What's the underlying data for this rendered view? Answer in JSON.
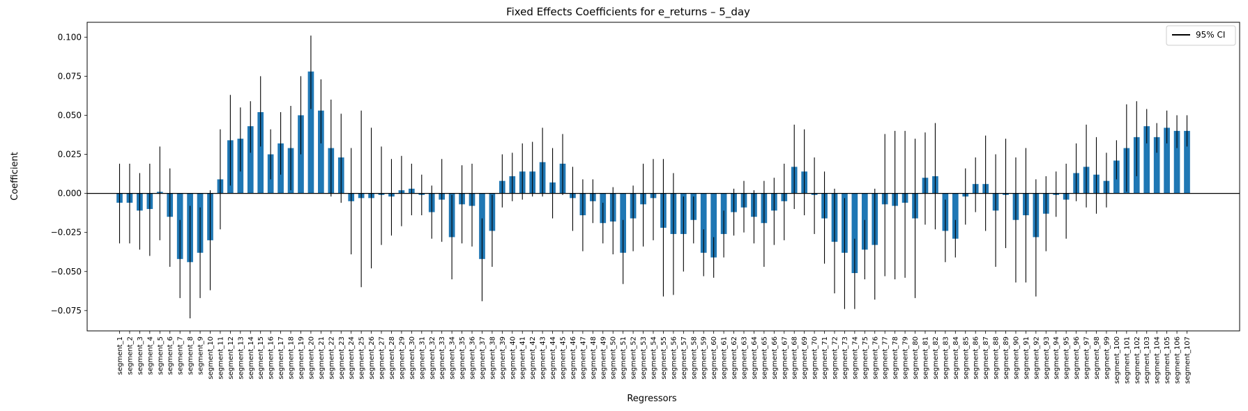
{
  "chart_data": {
    "type": "bar",
    "title": "Fixed Effects Coefficients for e_returns – 5_day",
    "xlabel": "Regressors",
    "ylabel": "Coefficient",
    "ylim": [
      -0.088,
      0.1095
    ],
    "yticks": [
      -0.075,
      -0.05,
      -0.025,
      0.0,
      0.025,
      0.05,
      0.075,
      0.1
    ],
    "ytick_labels": [
      "−0.075",
      "−0.050",
      "−0.025",
      "0.000",
      "0.025",
      "0.050",
      "0.075",
      "0.100"
    ],
    "reference_line": 0,
    "grid": false,
    "legend": {
      "position": "top-right",
      "entries": [
        "95% CI"
      ]
    },
    "colors": {
      "bar": "#1f77b4",
      "error": "#000000",
      "zero_line": "#000000"
    },
    "categories": [
      "segment_1",
      "segment_2",
      "segment_3",
      "segment_4",
      "segment_5",
      "segment_6",
      "segment_7",
      "segment_8",
      "segment_9",
      "segment_10",
      "segment_11",
      "segment_12",
      "segment_13",
      "segment_14",
      "segment_15",
      "segment_16",
      "segment_17",
      "segment_18",
      "segment_19",
      "segment_20",
      "segment_21",
      "segment_22",
      "segment_23",
      "segment_24",
      "segment_25",
      "segment_26",
      "segment_27",
      "segment_28",
      "segment_29",
      "segment_30",
      "segment_31",
      "segment_32",
      "segment_33",
      "segment_34",
      "segment_35",
      "segment_36",
      "segment_37",
      "segment_38",
      "segment_39",
      "segment_40",
      "segment_41",
      "segment_42",
      "segment_43",
      "segment_44",
      "segment_45",
      "segment_46",
      "segment_47",
      "segment_48",
      "segment_49",
      "segment_50",
      "segment_51",
      "segment_52",
      "segment_53",
      "segment_54",
      "segment_55",
      "segment_56",
      "segment_57",
      "segment_58",
      "segment_59",
      "segment_60",
      "segment_61",
      "segment_62",
      "segment_63",
      "segment_64",
      "segment_65",
      "segment_66",
      "segment_67",
      "segment_68",
      "segment_69",
      "segment_70",
      "segment_71",
      "segment_72",
      "segment_73",
      "segment_74",
      "segment_75",
      "segment_76",
      "segment_77",
      "segment_78",
      "segment_79",
      "segment_80",
      "segment_81",
      "segment_82",
      "segment_83",
      "segment_84",
      "segment_85",
      "segment_86",
      "segment_87",
      "segment_88",
      "segment_89",
      "segment_90",
      "segment_91",
      "segment_92",
      "segment_93",
      "segment_94",
      "segment_95",
      "segment_96",
      "segment_97",
      "segment_98",
      "segment_99",
      "segment_100",
      "segment_101",
      "segment_102",
      "segment_103",
      "segment_104",
      "segment_105",
      "segment_106",
      "segment_107"
    ],
    "values": [
      -0.006,
      -0.006,
      -0.011,
      -0.01,
      0.001,
      -0.015,
      -0.042,
      -0.044,
      -0.038,
      -0.03,
      0.009,
      0.034,
      0.035,
      0.043,
      0.052,
      0.025,
      0.032,
      0.029,
      0.05,
      0.078,
      0.053,
      0.029,
      0.023,
      -0.005,
      -0.003,
      -0.003,
      -0.001,
      -0.002,
      0.002,
      0.003,
      -0.001,
      -0.012,
      -0.004,
      -0.028,
      -0.007,
      -0.008,
      -0.042,
      -0.024,
      0.008,
      0.011,
      0.014,
      0.014,
      0.02,
      0.007,
      0.019,
      -0.003,
      -0.014,
      -0.005,
      -0.019,
      -0.018,
      -0.038,
      -0.016,
      -0.007,
      -0.003,
      -0.022,
      -0.026,
      -0.026,
      -0.017,
      -0.038,
      -0.041,
      -0.026,
      -0.012,
      -0.009,
      -0.015,
      -0.019,
      -0.011,
      -0.005,
      0.017,
      0.014,
      -0.001,
      -0.016,
      -0.031,
      -0.038,
      -0.051,
      -0.036,
      -0.033,
      -0.007,
      -0.008,
      -0.006,
      -0.016,
      0.01,
      0.011,
      -0.024,
      -0.029,
      -0.002,
      0.006,
      0.006,
      -0.011,
      -0.001,
      -0.017,
      -0.014,
      -0.028,
      -0.013,
      -0.001,
      -0.004,
      0.013,
      0.017,
      0.012,
      0.008,
      0.021,
      0.029,
      0.036,
      0.043,
      0.036,
      0.042,
      0.04,
      0.04
    ],
    "ci_lower": [
      -0.032,
      -0.032,
      -0.036,
      -0.04,
      -0.03,
      -0.047,
      -0.067,
      -0.08,
      -0.067,
      -0.062,
      -0.023,
      0.005,
      0.014,
      0.026,
      0.03,
      0.009,
      0.012,
      0.002,
      0.025,
      0.054,
      0.032,
      -0.002,
      -0.006,
      -0.039,
      -0.06,
      -0.048,
      -0.033,
      -0.027,
      -0.021,
      -0.014,
      -0.014,
      -0.029,
      -0.031,
      -0.055,
      -0.032,
      -0.034,
      -0.069,
      -0.047,
      -0.009,
      -0.005,
      -0.004,
      -0.002,
      -0.002,
      -0.016,
      -0.001,
      -0.024,
      -0.037,
      -0.019,
      -0.032,
      -0.039,
      -0.058,
      -0.037,
      -0.034,
      -0.03,
      -0.066,
      -0.065,
      -0.05,
      -0.032,
      -0.053,
      -0.054,
      -0.041,
      -0.027,
      -0.025,
      -0.032,
      -0.047,
      -0.033,
      -0.03,
      -0.01,
      -0.014,
      -0.026,
      -0.045,
      -0.064,
      -0.074,
      -0.074,
      -0.055,
      -0.068,
      -0.053,
      -0.055,
      -0.054,
      -0.067,
      -0.02,
      -0.023,
      -0.044,
      -0.041,
      -0.02,
      -0.012,
      -0.024,
      -0.047,
      -0.035,
      -0.057,
      -0.057,
      -0.066,
      -0.037,
      -0.015,
      -0.029,
      -0.005,
      -0.009,
      -0.013,
      -0.009,
      0.009,
      0.001,
      0.011,
      0.032,
      0.026,
      0.032,
      0.029,
      0.03
    ],
    "ci_upper": [
      0.019,
      0.019,
      0.013,
      0.019,
      0.03,
      0.016,
      -0.017,
      -0.008,
      -0.009,
      0.002,
      0.041,
      0.063,
      0.055,
      0.059,
      0.075,
      0.041,
      0.052,
      0.056,
      0.075,
      0.101,
      0.073,
      0.06,
      0.051,
      0.029,
      0.053,
      0.042,
      0.03,
      0.022,
      0.024,
      0.019,
      0.012,
      0.005,
      0.022,
      -0.001,
      0.018,
      0.019,
      -0.016,
      -0.001,
      0.025,
      0.026,
      0.032,
      0.033,
      0.042,
      0.029,
      0.038,
      0.017,
      0.009,
      0.009,
      -0.006,
      0.004,
      -0.017,
      0.005,
      0.019,
      0.022,
      0.022,
      0.013,
      -0.002,
      -0.002,
      -0.023,
      -0.028,
      -0.011,
      0.003,
      0.008,
      0.002,
      0.008,
      0.01,
      0.019,
      0.044,
      0.041,
      0.023,
      0.014,
      0.003,
      -0.003,
      -0.029,
      -0.017,
      0.003,
      0.038,
      0.04,
      0.04,
      0.035,
      0.039,
      0.045,
      -0.004,
      -0.017,
      0.016,
      0.023,
      0.037,
      0.025,
      0.035,
      0.023,
      0.029,
      0.009,
      0.011,
      0.014,
      0.019,
      0.032,
      0.044,
      0.036,
      0.026,
      0.034,
      0.057,
      0.059,
      0.054,
      0.045,
      0.053,
      0.05,
      0.05
    ]
  }
}
